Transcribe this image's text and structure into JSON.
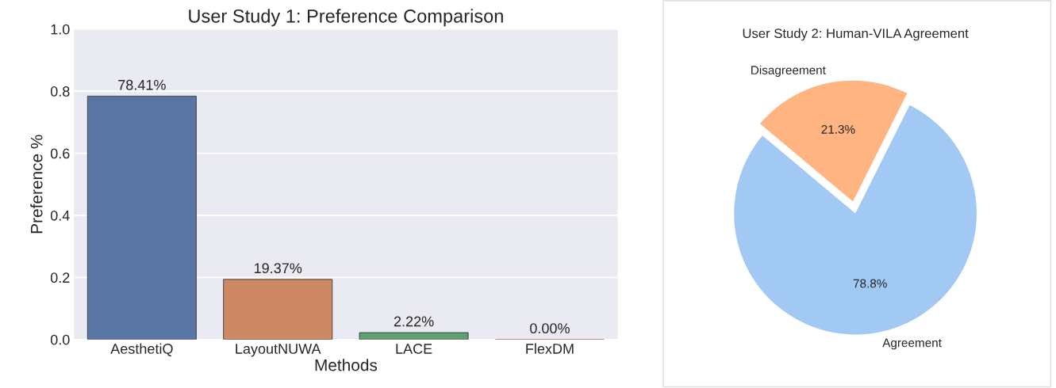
{
  "chart_data": [
    {
      "type": "bar",
      "title": "User Study 1: Preference Comparison",
      "xlabel": "Methods",
      "ylabel": "Preference %",
      "categories": [
        "AesthetiQ",
        "LayoutNUWA",
        "LACE",
        "FlexDM"
      ],
      "values": [
        0.7841,
        0.1937,
        0.0222,
        0.0
      ],
      "value_labels": [
        "78.41%",
        "19.37%",
        "2.22%",
        "0.00%"
      ],
      "colors": [
        "#5975a4",
        "#cc8963",
        "#5f9e6e",
        "#b55d60"
      ],
      "ylim": [
        0,
        1.0
      ],
      "yticks": [
        {
          "value": 0,
          "label": "0.0"
        },
        0.2,
        0.4,
        0.6,
        0.8,
        {
          "value": 1.0,
          "label": "1.0"
        }
      ],
      "grid": "y"
    },
    {
      "type": "pie",
      "title": "User Study 2: Human-VILA Agreement",
      "categories": [
        "Agreement",
        "Disagreement"
      ],
      "values": [
        78.8,
        21.3
      ],
      "value_labels": [
        "78.8%",
        "21.3%"
      ],
      "colors": [
        "#a1c9f4",
        "#ffb482"
      ]
    }
  ]
}
